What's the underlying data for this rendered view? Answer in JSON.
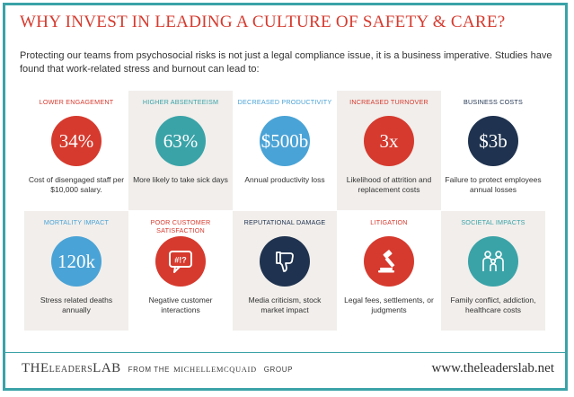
{
  "title": "WHY INVEST IN LEADING A CULTURE OF SAFETY & CARE?",
  "intro": "Protecting our teams from psychosocial risks is not just a legal compliance issue, it is a business imperative. Studies have found that work-related stress and burnout can lead to:",
  "colors": {
    "red": "#d63a2e",
    "blue": "#4aa3d6",
    "navy": "#1f3350",
    "teal": "#3aa3a8"
  },
  "cells": [
    {
      "title": "LOWER ENGAGEMENT",
      "value": "34%",
      "desc": "Cost of disengaged staff per $10,000 salary.",
      "color": "#d63a2e",
      "title_color": "#d63a2e",
      "shade": false
    },
    {
      "title": "HIGHER ABSENTEEISM",
      "value": "63%",
      "desc": "More likely to take sick days",
      "color": "#3aa3a8",
      "title_color": "#3aa3a8",
      "shade": true
    },
    {
      "title": "DECREASED PRODUCTIVITY",
      "value": "$500b",
      "desc": "Annual productivity loss",
      "color": "#4aa3d6",
      "title_color": "#4aa3d6",
      "shade": false
    },
    {
      "title": "INCREASED TURNOVER",
      "value": "3x",
      "desc": "Likelihood of attrition and replacement costs",
      "color": "#d63a2e",
      "title_color": "#d63a2e",
      "shade": true
    },
    {
      "title": "BUSINESS COSTS",
      "value": "$3b",
      "desc": "Failure to protect employees annual losses",
      "color": "#1f3350",
      "title_color": "#1f3350",
      "shade": false
    },
    {
      "title": "MORTALITY IMPACT",
      "value": "120k",
      "desc": "Stress related deaths annually",
      "color": "#4aa3d6",
      "title_color": "#4aa3d6",
      "shade": true
    },
    {
      "title": "POOR CUSTOMER SATISFACTION",
      "value": "",
      "icon": "speech-bubble-icon",
      "desc": "Negative customer interactions",
      "color": "#d63a2e",
      "title_color": "#d63a2e",
      "shade": false
    },
    {
      "title": "REPUTATIONAL DAMAGE",
      "value": "",
      "icon": "thumbs-down-icon",
      "desc": "Media criticism, stock market impact",
      "color": "#1f3350",
      "title_color": "#1f3350",
      "shade": true
    },
    {
      "title": "LITIGATION",
      "value": "",
      "icon": "gavel-icon",
      "desc": "Legal fees, settlements, or judgments",
      "color": "#d63a2e",
      "title_color": "#d63a2e",
      "shade": false
    },
    {
      "title": "SOCIETAL IMPACTS",
      "value": "",
      "icon": "family-icon",
      "desc": "Family conflict, addiction, healthcare costs",
      "color": "#3aa3a8",
      "title_color": "#3aa3a8",
      "shade": true
    }
  ],
  "footer": {
    "logo_the": "THE",
    "logo_leaders": "LEADERS",
    "logo_lab": "LAB",
    "logo_from": "FROM THE",
    "logo_brand": "MICHELLEMCQUAID",
    "logo_group": "GROUP",
    "url": "www.theleaderslab.net"
  }
}
